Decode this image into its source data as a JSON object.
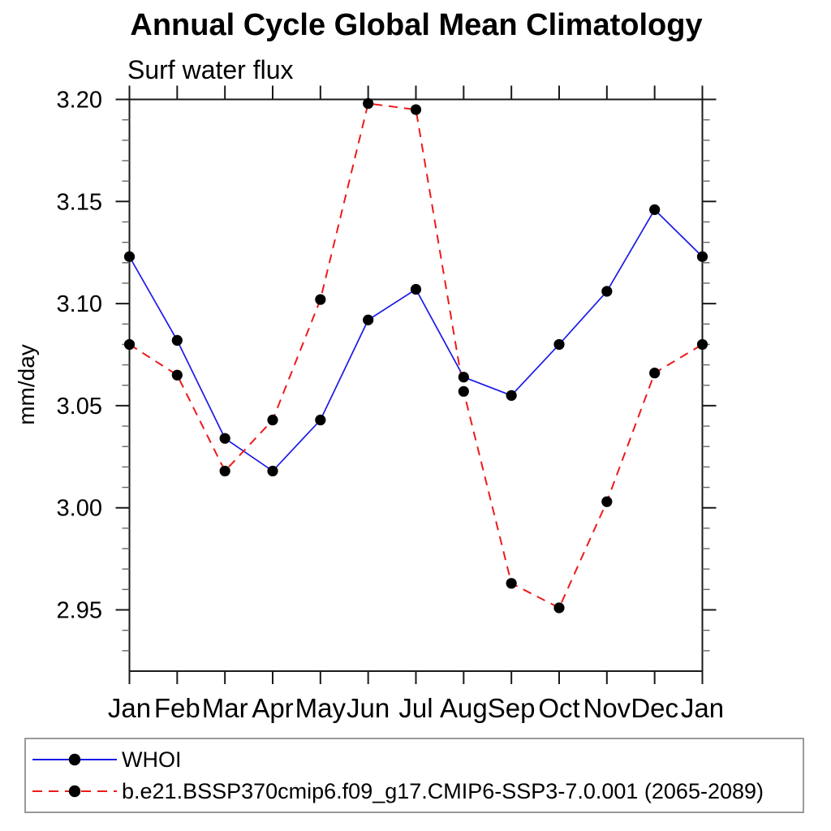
{
  "header": {
    "title": "Annual Cycle Global Mean Climatology",
    "subtitle": "Surf water flux"
  },
  "axes": {
    "ylabel": "mm/day",
    "ytick_labels": [
      "2.95",
      "3.00",
      "3.05",
      "3.10",
      "3.15",
      "3.20"
    ],
    "xtick_labels": [
      "Jan",
      "Feb",
      "Mar",
      "Apr",
      "May",
      "Jun",
      "Jul",
      "Aug",
      "Sep",
      "Oct",
      "Nov",
      "Dec",
      "Jan"
    ]
  },
  "chart_data": {
    "type": "line",
    "title": "Annual Cycle Global Mean Climatology",
    "subtitle": "Surf water flux",
    "xlabel": "",
    "ylabel": "mm/day",
    "categories": [
      "Jan",
      "Feb",
      "Mar",
      "Apr",
      "May",
      "Jun",
      "Jul",
      "Aug",
      "Sep",
      "Oct",
      "Nov",
      "Dec",
      "Jan"
    ],
    "series": [
      {
        "name": "WHOI",
        "color": "#1a1ae6",
        "line_style": "solid",
        "marker": "black-dot",
        "marker_color": "#000000",
        "values": [
          3.123,
          3.082,
          3.034,
          3.018,
          3.043,
          3.092,
          3.107,
          3.064,
          3.055,
          3.08,
          3.106,
          3.146,
          3.123
        ]
      },
      {
        "name": "b.e21.BSSP370cmip6.f09_g17.CMIP6-SSP3-7.0.001 (2065-2089)",
        "color": "#ee1a1a",
        "line_style": "dashed",
        "marker": "black-dot",
        "marker_color": "#000000",
        "values": [
          3.08,
          3.065,
          3.018,
          3.043,
          3.102,
          3.198,
          3.195,
          3.057,
          2.963,
          2.951,
          3.003,
          3.066,
          3.08
        ]
      }
    ],
    "ylim": [
      2.92,
      3.2
    ],
    "yticks_major": [
      2.95,
      3.0,
      3.05,
      3.1,
      3.15,
      3.2
    ],
    "ytick_minor_step": 0.01,
    "grid": false,
    "legend_position": "bottom-left-outside"
  }
}
